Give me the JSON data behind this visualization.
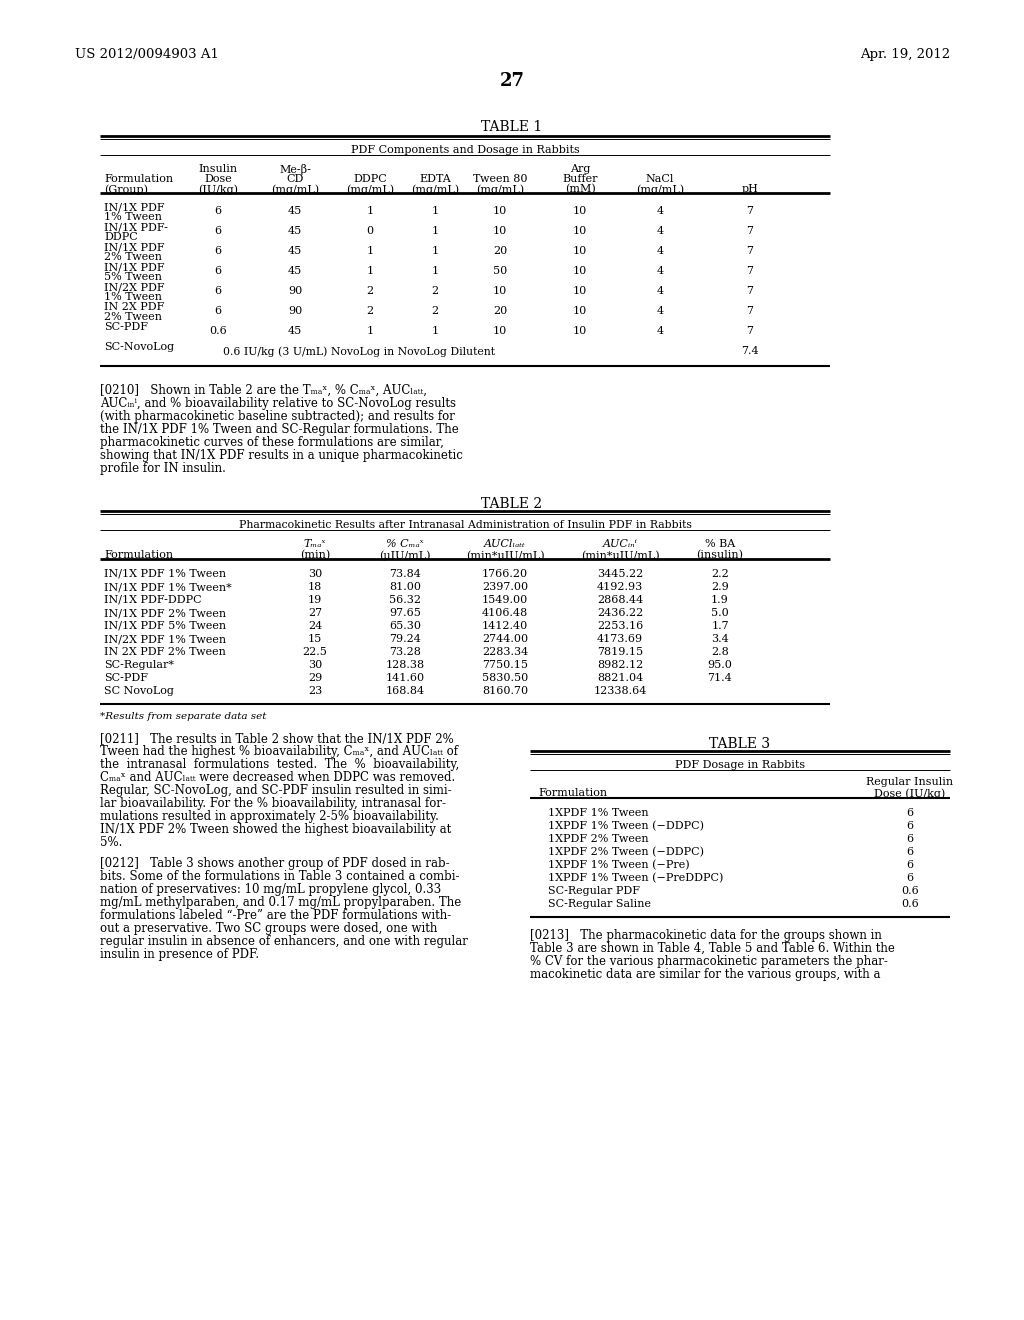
{
  "header_left": "US 2012/0094903 A1",
  "header_right": "Apr. 19, 2012",
  "page_number": "27",
  "bg_color": "#ffffff",
  "text_color": "#000000",
  "table1_title": "TABLE 1",
  "table1_subtitle": "PDF Components and Dosage in Rabbits",
  "table2_title": "TABLE 2",
  "table2_subtitle": "Pharmacokinetic Results after Intranasal Administration of Insulin PDF in Rabbits",
  "table2_rows": [
    [
      "IN/1X PDF 1% Tween",
      "30",
      "73.84",
      "1766.20",
      "3445.22",
      "2.2"
    ],
    [
      "IN/1X PDF 1% Tween*",
      "18",
      "81.00",
      "2397.00",
      "4192.93",
      "2.9"
    ],
    [
      "IN/1X PDF-DDPC",
      "19",
      "56.32",
      "1549.00",
      "2868.44",
      "1.9"
    ],
    [
      "IN/1X PDF 2% Tween",
      "27",
      "97.65",
      "4106.48",
      "2436.22",
      "5.0"
    ],
    [
      "IN/1X PDF 5% Tween",
      "24",
      "65.30",
      "1412.40",
      "2253.16",
      "1.7"
    ],
    [
      "IN/2X PDF 1% Tween",
      "15",
      "79.24",
      "2744.00",
      "4173.69",
      "3.4"
    ],
    [
      "IN 2X PDF 2% Tween",
      "22.5",
      "73.28",
      "2283.34",
      "7819.15",
      "2.8"
    ],
    [
      "SC-Regular*",
      "30",
      "128.38",
      "7750.15",
      "8982.12",
      "95.0"
    ],
    [
      "SC-PDF",
      "29",
      "141.60",
      "5830.50",
      "8821.04",
      "71.4"
    ],
    [
      "SC NovoLog",
      "23",
      "168.84",
      "8160.70",
      "12338.64",
      ""
    ]
  ],
  "table2_footnote": "*Results from separate data set",
  "table3_title": "TABLE 3",
  "table3_subtitle": "PDF Dosage in Rabbits",
  "table3_rows": [
    [
      "1XPDF 1% Tween",
      "6"
    ],
    [
      "1XPDF 1% Tween (−DDPC)",
      "6"
    ],
    [
      "1XPDF 2% Tween",
      "6"
    ],
    [
      "1XPDF 2% Tween (−DDPC)",
      "6"
    ],
    [
      "1XPDF 1% Tween (−Pre)",
      "6"
    ],
    [
      "1XPDF 1% Tween (−PreDDPC)",
      "6"
    ],
    [
      "SC-Regular PDF",
      "0.6"
    ],
    [
      "SC-Regular Saline",
      "0.6"
    ]
  ]
}
